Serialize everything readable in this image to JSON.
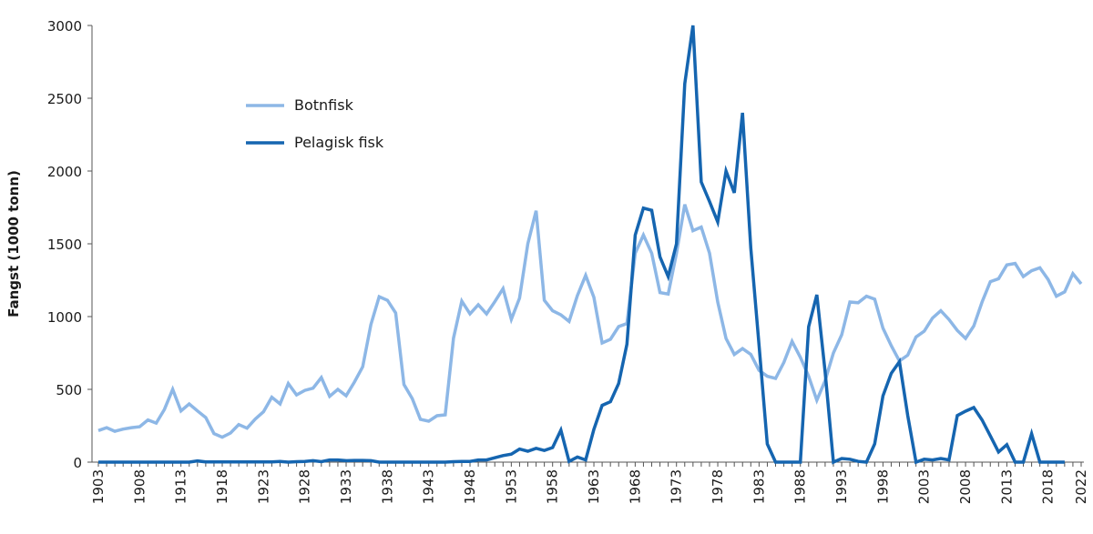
{
  "chart_data": {
    "type": "line",
    "title": "",
    "xlabel": "",
    "ylabel": "Fangst (1000 tonn)",
    "xlim": [
      1903,
      2022
    ],
    "ylim": [
      0,
      3000
    ],
    "yticks": [
      0,
      500,
      1000,
      1500,
      2000,
      2500,
      3000
    ],
    "xtick_labels": [
      "1903",
      "1908",
      "1913",
      "1918",
      "1923",
      "1928",
      "1933",
      "1938",
      "1943",
      "1948",
      "1953",
      "1958",
      "1963",
      "1968",
      "1973",
      "1978",
      "1983",
      "1988",
      "1993",
      "1998",
      "2003",
      "2008",
      "2013",
      "2018",
      "2022"
    ],
    "grid": false,
    "legend_position": "top-left",
    "x_start": 1903,
    "series": [
      {
        "name": "Botnfisk",
        "color": "#8db7e6",
        "values": [
          217,
          237,
          212,
          227,
          237,
          243,
          290,
          268,
          362,
          500,
          352,
          400,
          352,
          306,
          196,
          171,
          200,
          258,
          233,
          296,
          346,
          446,
          400,
          540,
          462,
          493,
          508,
          581,
          452,
          500,
          456,
          550,
          655,
          945,
          1137,
          1112,
          1025,
          533,
          437,
          294,
          281,
          319,
          325,
          852,
          1106,
          1019,
          1081,
          1019,
          1102,
          1192,
          981,
          1127,
          1500,
          1727,
          1112,
          1040,
          1012,
          967,
          1144,
          1283,
          1133,
          819,
          844,
          931,
          952,
          1435,
          1560,
          1435,
          1165,
          1155,
          1435,
          1770,
          1590,
          1615,
          1435,
          1100,
          850,
          740,
          780,
          740,
          630,
          590,
          575,
          685,
          830,
          720,
          590,
          425,
          560,
          750,
          875,
          1100,
          1095,
          1140,
          1120,
          920,
          800,
          695,
          735,
          860,
          900,
          990,
          1040,
          980,
          905,
          850,
          935,
          1100,
          1240,
          1260,
          1355,
          1365,
          1275,
          1315,
          1335,
          1255,
          1140,
          1170,
          1295,
          1225
        ]
      },
      {
        "name": "Pelagisk fisk",
        "color": "#1565b0",
        "values": [
          0,
          0,
          0,
          0,
          0,
          0,
          0,
          0,
          0,
          0,
          0,
          0,
          8,
          2,
          2,
          2,
          2,
          2,
          2,
          2,
          2,
          2,
          5,
          0,
          3,
          5,
          10,
          3,
          15,
          15,
          10,
          12,
          12,
          10,
          0,
          0,
          0,
          0,
          0,
          0,
          0,
          0,
          0,
          3,
          5,
          5,
          15,
          15,
          30,
          45,
          55,
          90,
          75,
          95,
          80,
          100,
          220,
          5,
          35,
          15,
          225,
          390,
          415,
          540,
          810,
          1560,
          1745,
          1730,
          1410,
          1275,
          1500,
          2600,
          3000,
          1925,
          1790,
          1650,
          2000,
          1850,
          2400,
          1470,
          800,
          125,
          0,
          0,
          0,
          0,
          930,
          1150,
          620,
          0,
          25,
          20,
          5,
          0,
          125,
          455,
          610,
          690,
          320,
          0,
          20,
          15,
          25,
          15,
          320,
          350,
          375,
          290,
          180,
          70,
          120,
          0,
          0,
          195,
          0,
          0,
          0,
          0
        ]
      }
    ]
  }
}
